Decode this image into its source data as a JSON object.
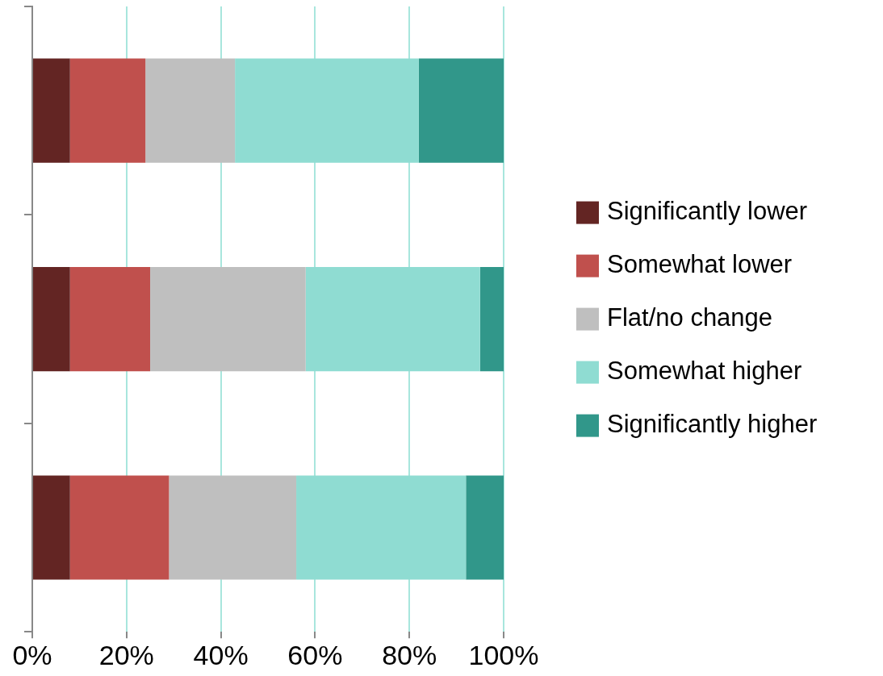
{
  "chart_data": {
    "type": "bar",
    "orientation": "horizontal",
    "stacked": true,
    "categories": [
      null,
      null,
      null
    ],
    "series": [
      {
        "name": "Significantly lower",
        "color": "#632523",
        "values": [
          8,
          8,
          8
        ]
      },
      {
        "name": "Somewhat lower",
        "color": "#c0504d",
        "values": [
          16,
          17,
          21
        ]
      },
      {
        "name": "Flat/no change",
        "color": "#bfbfbf",
        "values": [
          19,
          33,
          27
        ]
      },
      {
        "name": "Somewhat higher",
        "color": "#8fdcd2",
        "values": [
          39,
          37,
          36
        ]
      },
      {
        "name": "Significantly higher",
        "color": "#31978a",
        "values": [
          18,
          5,
          8
        ]
      }
    ],
    "xlim": [
      0,
      100
    ],
    "xticks": [
      {
        "value": 0,
        "label": "0%"
      },
      {
        "value": 20,
        "label": "20%"
      },
      {
        "value": 40,
        "label": "40%"
      },
      {
        "value": 60,
        "label": "60%"
      },
      {
        "value": 80,
        "label": "80%"
      },
      {
        "value": 100,
        "label": "100%"
      }
    ],
    "grid": "x",
    "legend": "right",
    "tick_labels": "x"
  }
}
